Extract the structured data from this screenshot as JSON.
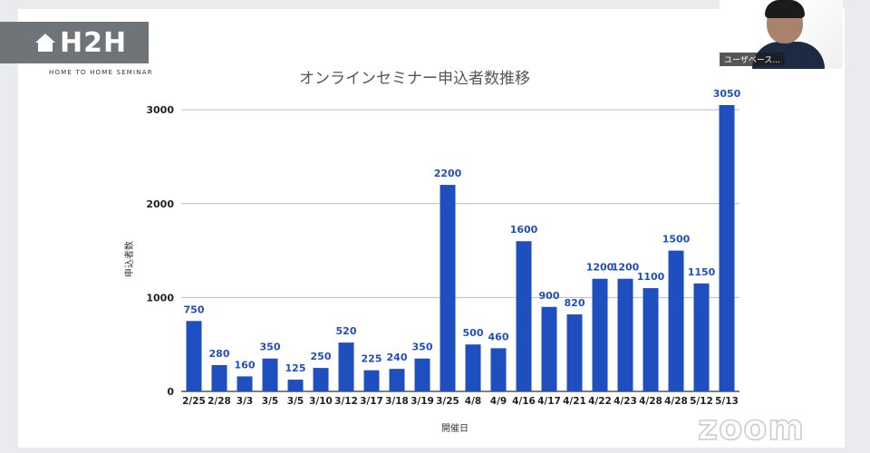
{
  "logo": {
    "text": "H2H",
    "subtitle": "HOME TO HOME SEMINAR"
  },
  "participant": {
    "name": "ユーザベース..."
  },
  "watermark": "zoom",
  "chart_data": {
    "type": "bar",
    "title": "オンラインセミナー申込者数推移",
    "xlabel": "開催日",
    "ylabel": "申込者数",
    "ylim": [
      0,
      3050
    ],
    "yticks": [
      0,
      1000,
      2000,
      3000
    ],
    "grid": true,
    "bar_color": "#1f4fbf",
    "categories": [
      "2/25",
      "2/28",
      "3/3",
      "3/5",
      "3/5",
      "3/10",
      "3/12",
      "3/17",
      "3/18",
      "3/19",
      "3/25",
      "4/8",
      "4/9",
      "4/16",
      "4/17",
      "4/21",
      "4/22",
      "4/23",
      "4/28",
      "4/28",
      "5/12",
      "5/13"
    ],
    "values": [
      750,
      280,
      160,
      350,
      125,
      250,
      520,
      225,
      240,
      350,
      2200,
      500,
      460,
      1600,
      900,
      820,
      1200,
      1200,
      1100,
      1500,
      1150,
      3050
    ]
  }
}
